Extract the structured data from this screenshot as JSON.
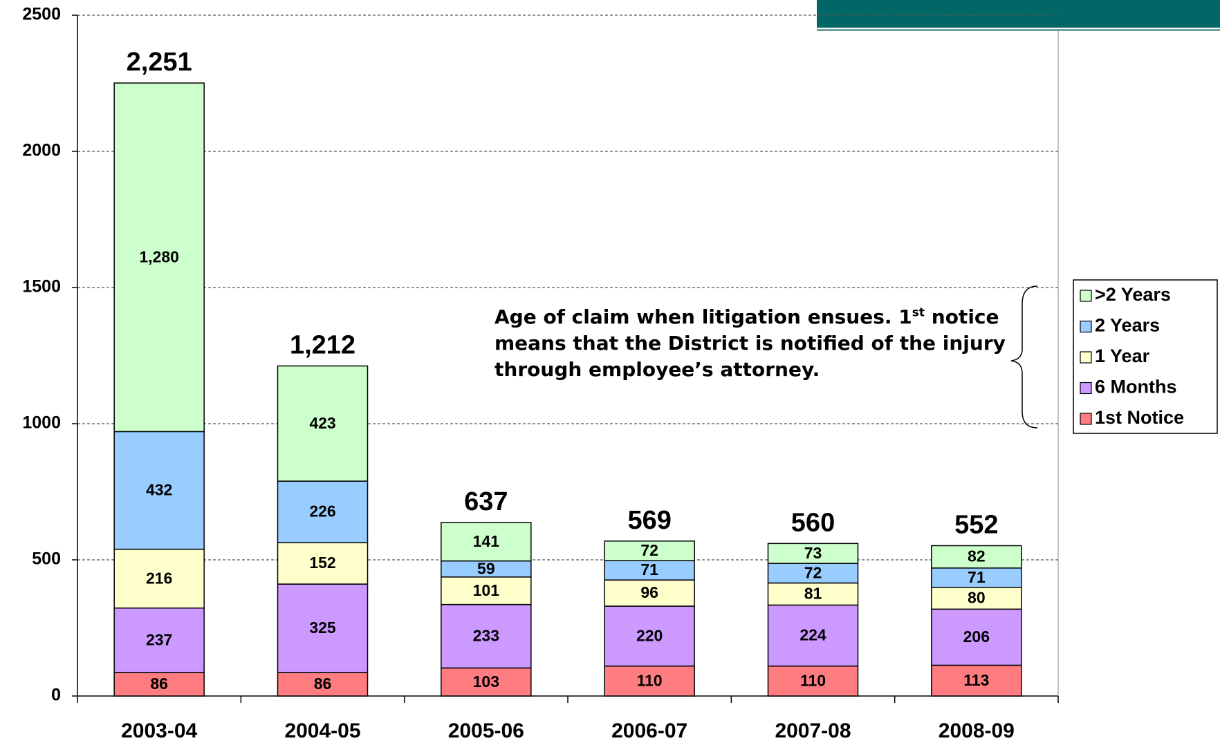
{
  "chart_data": {
    "type": "stacked_bar",
    "categories": [
      "2003-04",
      "2004-05",
      "2005-06",
      "2006-07",
      "2007-08",
      "2008-09"
    ],
    "series": [
      {
        "name": "1st Notice",
        "color": "#ff7c80",
        "values": [
          86,
          86,
          103,
          110,
          110,
          113
        ]
      },
      {
        "name": "6 Months",
        "color": "#cc99ff",
        "values": [
          237,
          325,
          233,
          220,
          224,
          206
        ]
      },
      {
        "name": "1 Year",
        "color": "#ffffcc",
        "values": [
          216,
          152,
          101,
          96,
          81,
          80
        ]
      },
      {
        "name": "2 Years",
        "color": "#99ccff",
        "values": [
          432,
          226,
          59,
          71,
          72,
          71
        ]
      },
      {
        "name": ">2 Years",
        "color": "#ccffcc",
        "values": [
          1280,
          423,
          141,
          72,
          73,
          82
        ],
        "value_labels": [
          "1,280",
          "423",
          "141",
          "72",
          "73",
          "82"
        ]
      }
    ],
    "totals": [
      2251,
      1212,
      637,
      569,
      560,
      552
    ],
    "total_labels": [
      "2,251",
      "1,212",
      "637",
      "569",
      "560",
      "552"
    ],
    "ylim": [
      0,
      2500
    ],
    "yticks": [
      0,
      500,
      1000,
      1500,
      2000,
      2500
    ],
    "grid": true,
    "legend": "right",
    "annotation": {
      "before": "Age of claim when litigation ensues. 1",
      "superscript": "st",
      "after": " notice means that the District is notified of the injury through employee’s attorney."
    }
  }
}
